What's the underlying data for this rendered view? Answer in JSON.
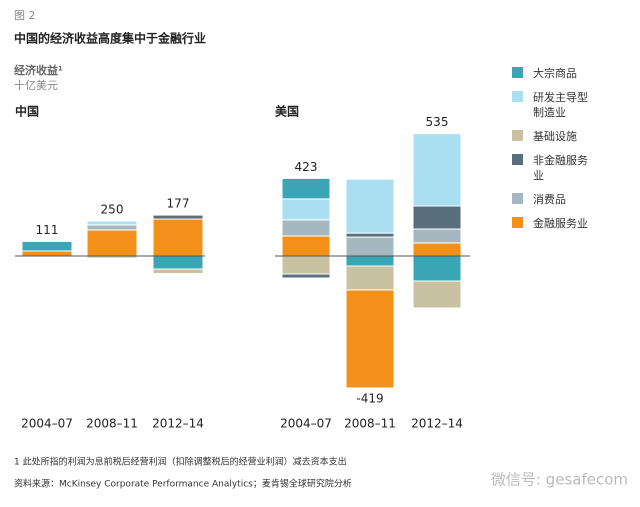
{
  "figure_label": "图 2",
  "chart_data": {
    "type": "bar",
    "stacked": true,
    "title": "中国的经济收益高度集中于金融行业",
    "ylabel": "经济收益¹",
    "unit": "十亿美元",
    "series": [
      {
        "name": "大宗商品",
        "color": "#3aa5b4"
      },
      {
        "name": "研发主导型制造业",
        "color": "#a9dff0"
      },
      {
        "name": "基础设施",
        "color": "#c8c2a2"
      },
      {
        "name": "非金融服务业",
        "color": "#566f7b"
      },
      {
        "name": "消费品",
        "color": "#a6b8bf"
      },
      {
        "name": "金融服务业",
        "color": "#f39019"
      }
    ],
    "panels": [
      {
        "title": "中国",
        "categories": [
          "2004–07",
          "2008–11",
          "2012–14"
        ],
        "totals": [
          111,
          250,
          177
        ],
        "series": [
          {
            "values": [
              73,
              0,
              -99
            ]
          },
          {
            "values": [
              0,
              30,
              0
            ]
          },
          {
            "values": [
              0,
              -16,
              -35
            ]
          },
          {
            "values": [
              0,
              0,
              30
            ]
          },
          {
            "values": [
              0,
              38,
              0
            ]
          },
          {
            "values": [
              38,
              198,
              281
            ]
          }
        ]
      },
      {
        "title": "美国",
        "categories": [
          "2004–07",
          "2008–11",
          "2012–14"
        ],
        "totals": [
          423,
          -419,
          535
        ],
        "series": [
          {
            "values": [
              156,
              -76,
              -190
            ]
          },
          {
            "values": [
              160,
              410,
              550
            ]
          },
          {
            "values": [
              -137,
              -182,
              -205
            ]
          },
          {
            "values": [
              -30,
              30,
              175
            ]
          },
          {
            "values": [
              122,
              144,
              106
            ]
          },
          {
            "values": [
              152,
              -745,
              99
            ]
          }
        ]
      }
    ]
  },
  "footnote": "1 此处所指的利润为息前税后经营利润（扣除调整税后的经营业利润）减去资本支出",
  "source": "资料来源：McKinsey Corporate Performance Analytics；麦肯锡全球研究院分析",
  "watermark": "微信号: gesafecom"
}
